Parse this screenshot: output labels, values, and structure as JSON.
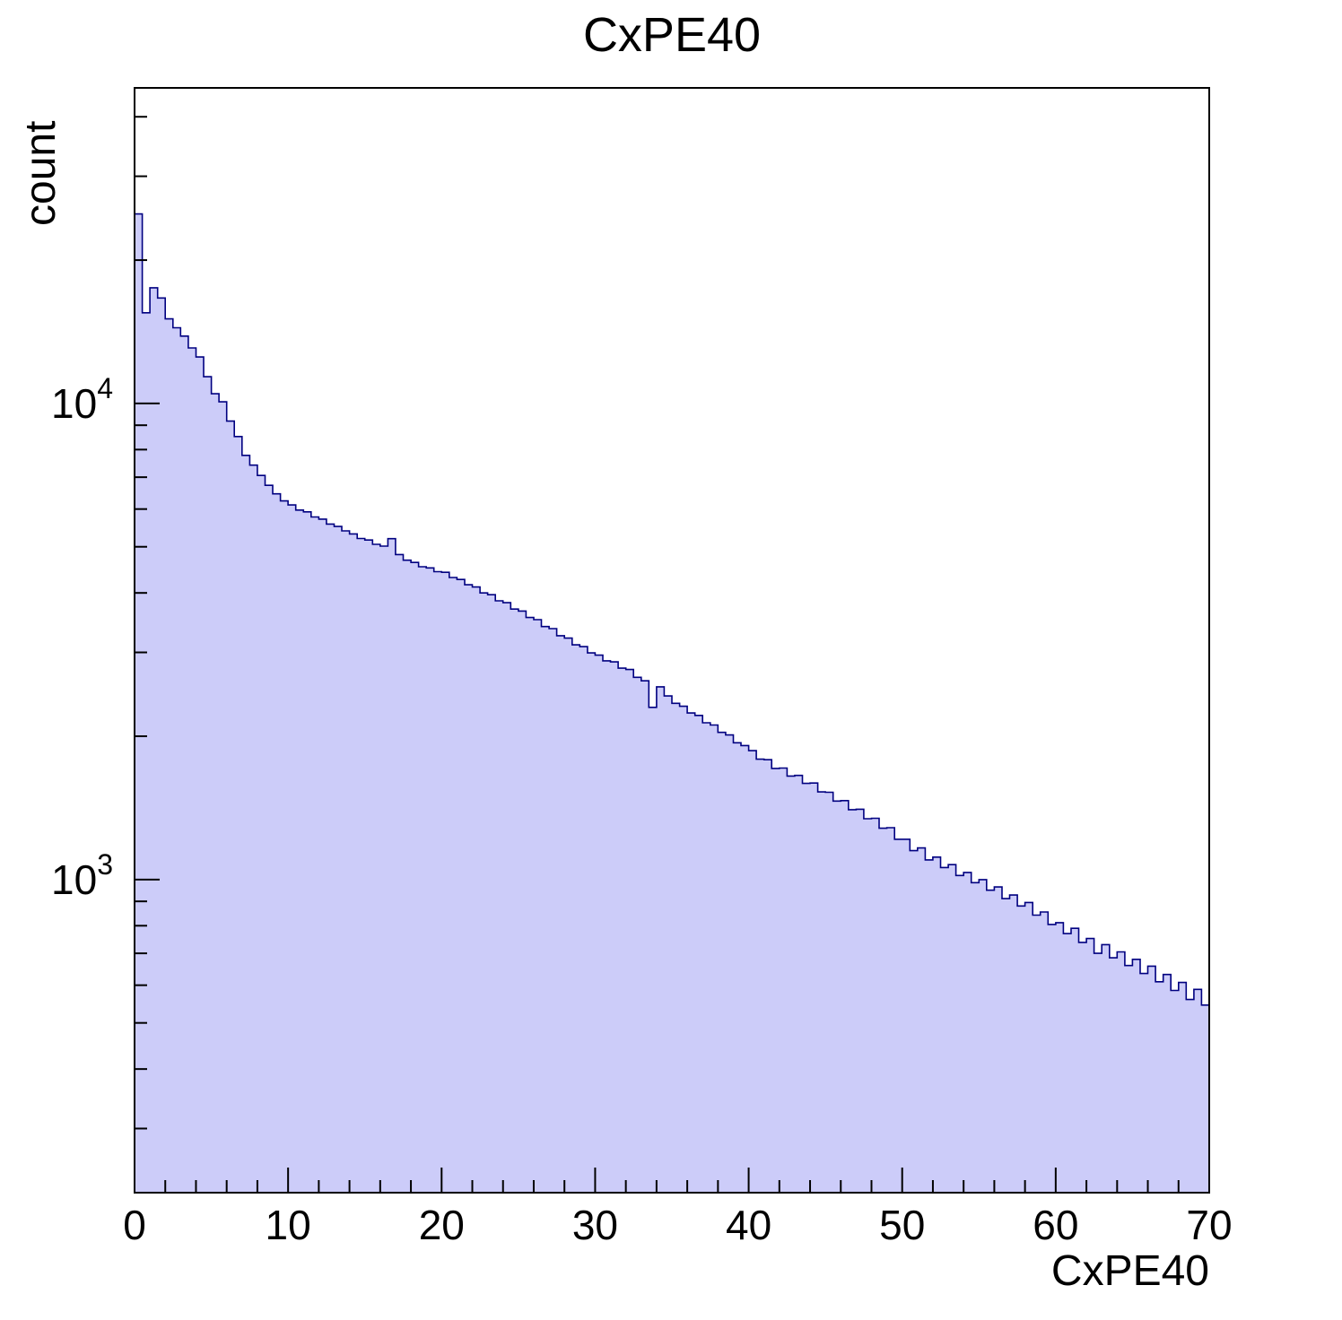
{
  "chart_data": {
    "type": "bar",
    "subtype": "histogram",
    "title": "CxPE40",
    "xlabel": "CxPE40",
    "ylabel": "count",
    "x_start": 0,
    "bin_width": 0.5,
    "xlim": [
      0,
      70
    ],
    "ylim": [
      220,
      46000
    ],
    "yscale": "log",
    "grid": false,
    "legend": "none",
    "x_ticks": [
      0,
      10,
      20,
      30,
      40,
      50,
      60,
      70
    ],
    "x_minor_tick_step": 2,
    "y_major_ticks": [
      1000,
      10000
    ],
    "y_tick_labels": [
      {
        "value": 1000,
        "mantissa": "10",
        "exponent": "3"
      },
      {
        "value": 10000,
        "mantissa": "10",
        "exponent": "4"
      }
    ],
    "fill_color": "#ccccf9",
    "line_color": "#000080",
    "frame_color": "#000000",
    "values": [
      25000,
      15500,
      17500,
      16650,
      15050,
      14420,
      13850,
      13080,
      12520,
      11380,
      10480,
      10080,
      9180,
      8520,
      7780,
      7420,
      7060,
      6730,
      6460,
      6240,
      6120,
      5970,
      5920,
      5775,
      5715,
      5580,
      5515,
      5400,
      5320,
      5205,
      5165,
      5060,
      5015,
      5200,
      4815,
      4685,
      4635,
      4540,
      4515,
      4432,
      4420,
      4310,
      4268,
      4160,
      4115,
      4000,
      3965,
      3850,
      3815,
      3700,
      3665,
      3552,
      3515,
      3400,
      3365,
      3252,
      3215,
      3112,
      3085,
      2992,
      2960,
      2880,
      2865,
      2780,
      2762,
      2660,
      2615,
      2300,
      2540,
      2430,
      2345,
      2312,
      2238,
      2212,
      2135,
      2112,
      2038,
      2012,
      1938,
      1912,
      1865,
      1790,
      1785,
      1712,
      1715,
      1650,
      1655,
      1592,
      1595,
      1528,
      1525,
      1462,
      1465,
      1402,
      1405,
      1342,
      1345,
      1282,
      1285,
      1215,
      1215,
      1150,
      1165,
      1100,
      1115,
      1060,
      1075,
      1020,
      1035,
      985,
      1000,
      950,
      965,
      912,
      928,
      880,
      895,
      842,
      855,
      805,
      812,
      770,
      790,
      738,
      752,
      700,
      730,
      685,
      705,
      660,
      680,
      635,
      658,
      610,
      632,
      585,
      608,
      560,
      588,
      545
    ]
  }
}
